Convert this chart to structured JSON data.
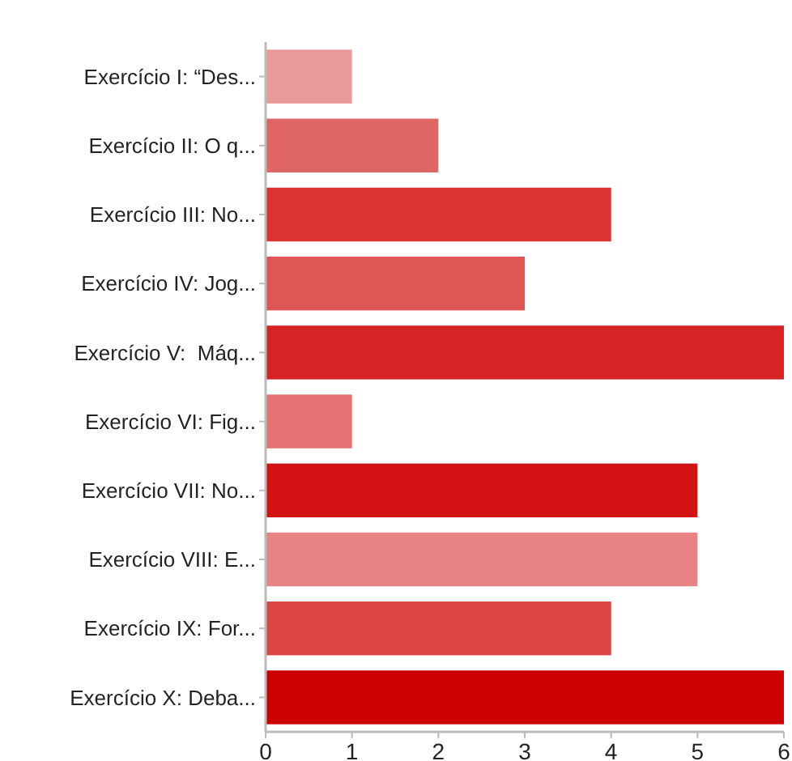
{
  "chart_data": {
    "type": "bar",
    "orientation": "horizontal",
    "categories": [
      "Exercício I: “Des...",
      "Exercício II: O q...",
      "Exercício III: No...",
      "Exercício IV: Jog...",
      "Exercício V:  Máq...",
      "Exercício VI: Fig...",
      "Exercício VII: No...",
      "Exercício VIII: E...",
      "Exercício IX: For...",
      "Exercício X: Deba..."
    ],
    "values": [
      1,
      2,
      4,
      3,
      6,
      1,
      5,
      5,
      4,
      6
    ],
    "colors": [
      "#ea9999",
      "#e06666",
      "#d93333",
      "#e05555",
      "#d62424",
      "#e57373",
      "#d31313",
      "#e88383",
      "#dd4444",
      "#cc0000"
    ],
    "xlim": [
      0,
      6
    ],
    "xticks": [
      0,
      1,
      2,
      3,
      4,
      5,
      6
    ],
    "grid": false
  }
}
